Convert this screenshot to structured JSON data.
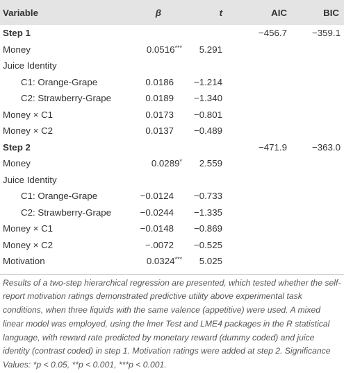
{
  "table": {
    "headers": [
      "Variable",
      "β",
      "t",
      "AIC",
      "BIC"
    ],
    "rows": [
      {
        "variable": "Step 1",
        "aic": "−456.7",
        "bic": "−359.1"
      },
      {
        "variable": "Money",
        "beta": "0.0516",
        "sig": "***",
        "t": "5.291"
      },
      {
        "variable": "Juice Identity"
      },
      {
        "variable": "C1: Orange-Grape",
        "beta": "0.0186",
        "t": "−1.214"
      },
      {
        "variable": "C2: Strawberry-Grape",
        "beta": "0.0189",
        "t": "−1.340"
      },
      {
        "variable": "Money × C1",
        "beta": "0.0173",
        "t": "−0.801"
      },
      {
        "variable": "Money × C2",
        "beta": "0.0137",
        "t": "−0.489"
      },
      {
        "variable": "Step 2",
        "aic": "−471.9",
        "bic": "−363.0"
      },
      {
        "variable": "Money",
        "beta": "0.0289",
        "sig": "*",
        "t": "2.559"
      },
      {
        "variable": "Juice Identity"
      },
      {
        "variable": "C1: Orange-Grape",
        "beta": "−0.0124",
        "t": "−0.733"
      },
      {
        "variable": "C2: Strawberry-Grape",
        "beta": "−0.0244",
        "t": "−1.335"
      },
      {
        "variable": "Money × C1",
        "beta": "−0.0148",
        "t": "−0.869"
      },
      {
        "variable": "Money × C2",
        "beta": "−.0072",
        "t": "−0.525"
      },
      {
        "variable": "Motivation",
        "beta": "0.0324",
        "sig": "***",
        "t": "5.025"
      }
    ],
    "caption": "Results of a two-step hierarchical regression are presented, which tested whether the self-report motivation ratings demonstrated predictive utility above experimental task conditions, when three liquids with the same valence (appetitive) were used. A mixed linear model was employed, using the lmer Test and LME4 packages in the R statistical language, with reward rate predicted by monetary reward (dummy coded) and juice identity (contrast coded) in step 1. Motivation ratings were added at step 2. Significance Values: *p < 0.05, **p < 0.001, ***p < 0.001."
  }
}
